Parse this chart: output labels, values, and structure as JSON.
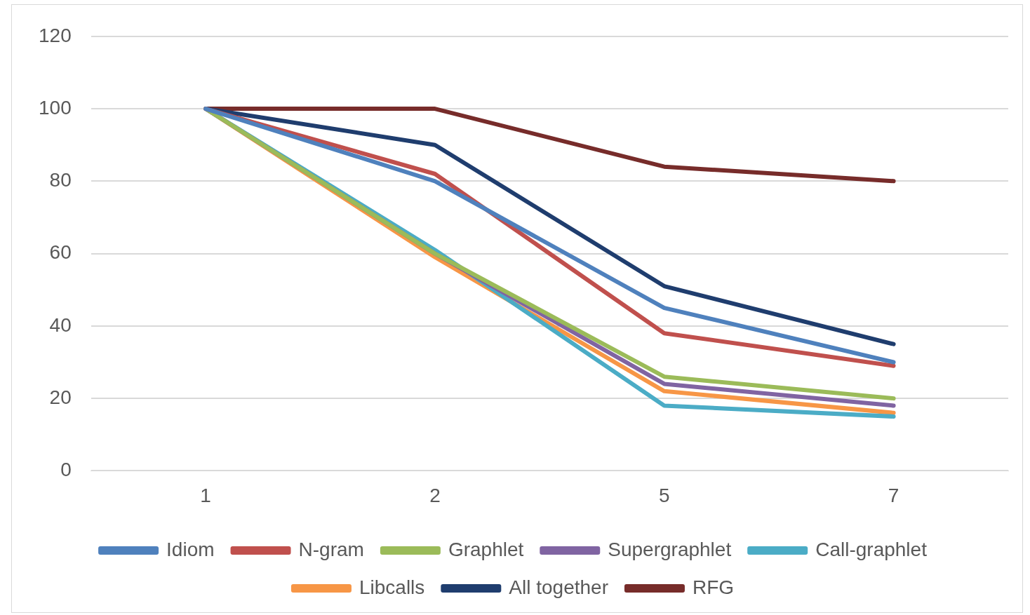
{
  "chart_data": {
    "type": "line",
    "categories": [
      "1",
      "2",
      "5",
      "7"
    ],
    "series": [
      {
        "name": "Idiom",
        "color": "#4f81bd",
        "values": [
          100,
          80,
          45,
          30
        ]
      },
      {
        "name": "N-gram",
        "color": "#c0504d",
        "values": [
          100,
          82,
          38,
          29
        ]
      },
      {
        "name": "Graphlet",
        "color": "#9bbb59",
        "values": [
          100,
          60,
          26,
          20
        ]
      },
      {
        "name": "Supergraphlet",
        "color": "#8064a2",
        "values": [
          100,
          60,
          24,
          18
        ]
      },
      {
        "name": "Call-graphlet",
        "color": "#4bacc6",
        "values": [
          100,
          61,
          18,
          15
        ]
      },
      {
        "name": "Libcalls",
        "color": "#f79646",
        "values": [
          100,
          59,
          22,
          16
        ]
      },
      {
        "name": "All together",
        "color": "#1f3d6e",
        "values": [
          100,
          90,
          51,
          35
        ]
      },
      {
        "name": "RFG",
        "color": "#772c2a",
        "values": [
          100,
          100,
          84,
          80
        ]
      }
    ],
    "ylim": [
      0,
      120
    ],
    "yticks": [
      0,
      20,
      40,
      60,
      80,
      100,
      120
    ],
    "grid": "y",
    "legend": "bottom",
    "marker": "none",
    "line_style": "solid"
  }
}
